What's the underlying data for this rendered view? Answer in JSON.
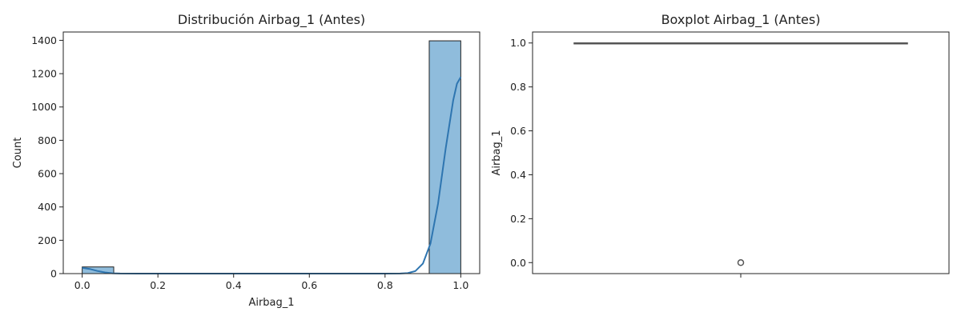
{
  "chart_data": [
    {
      "type": "bar",
      "subtype": "histogram_with_kde",
      "title": "Distribución Airbag_1 (Antes)",
      "xlabel": "Airbag_1",
      "ylabel": "Count",
      "xlim": [
        -0.05,
        1.05
      ],
      "ylim": [
        0,
        1450
      ],
      "xticks": [
        "0.0",
        "0.2",
        "0.4",
        "0.6",
        "0.8",
        "1.0"
      ],
      "yticks": [
        "0",
        "200",
        "400",
        "600",
        "800",
        "1000",
        "1200",
        "1400"
      ],
      "bins": [
        {
          "x0": 0.0,
          "x1": 0.0833,
          "count": 40
        },
        {
          "x0": 0.9167,
          "x1": 1.0,
          "count": 1397
        }
      ],
      "kde": {
        "x": [
          0.0,
          0.02,
          0.04,
          0.06,
          0.08,
          0.1,
          0.15,
          0.2,
          0.4,
          0.6,
          0.8,
          0.84,
          0.86,
          0.88,
          0.9,
          0.92,
          0.94,
          0.96,
          0.98,
          0.99,
          1.0
        ],
        "y": [
          35,
          28,
          16,
          7,
          2,
          0.5,
          0,
          0,
          0,
          0,
          0,
          0.5,
          3,
          15,
          60,
          180,
          420,
          750,
          1040,
          1140,
          1180
        ]
      },
      "bar_color": "#8fbcdc",
      "line_color": "#2e75b0",
      "grid": false
    },
    {
      "type": "boxplot",
      "title": "Boxplot Airbag_1 (Antes)",
      "ylabel": "Airbag_1",
      "ylim": [
        -0.05,
        1.05
      ],
      "yticks": [
        "0.0",
        "0.2",
        "0.4",
        "0.6",
        "0.8",
        "1.0"
      ],
      "box": {
        "whisker_low": 1.0,
        "q1": 1.0,
        "median": 1.0,
        "q3": 1.0,
        "whisker_high": 1.0
      },
      "outliers": [
        0.0
      ],
      "box_color": "#555555",
      "grid": false
    }
  ]
}
